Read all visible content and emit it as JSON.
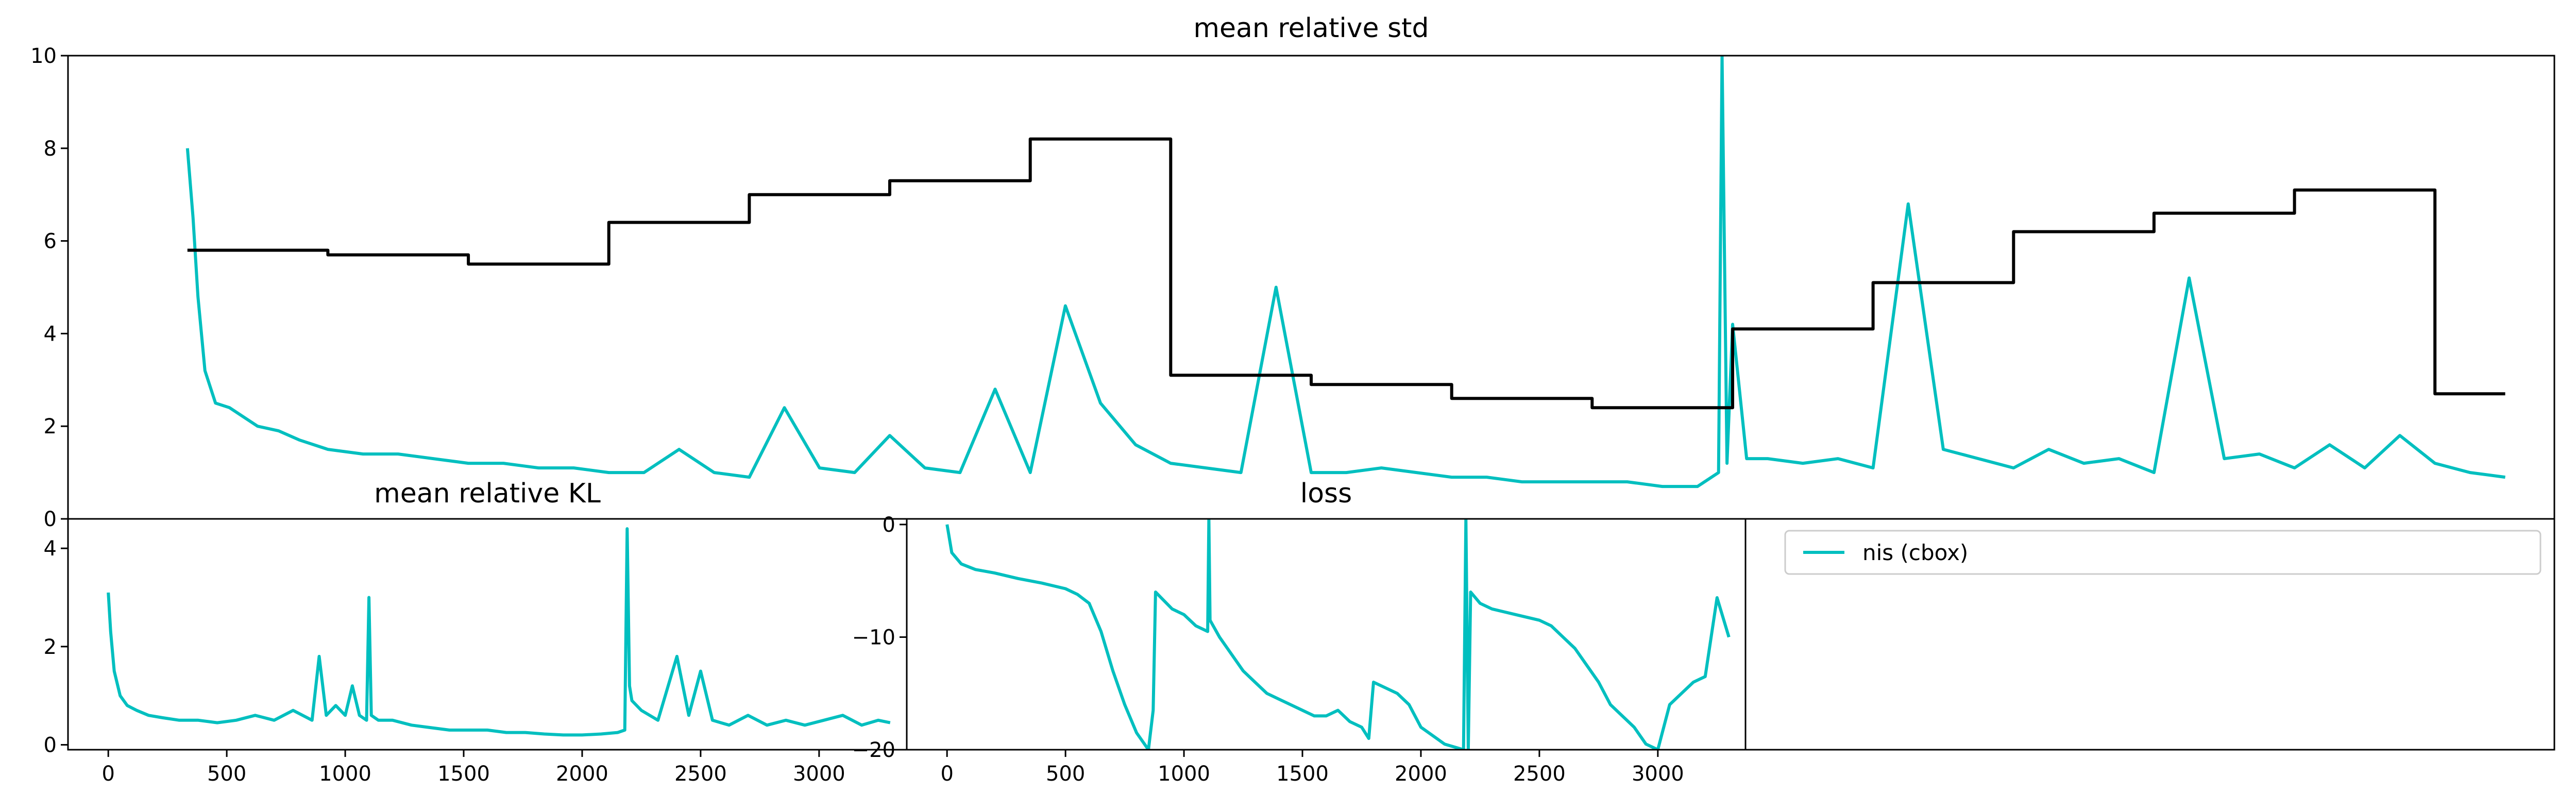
{
  "colors": {
    "cyan": "#00bfbf",
    "black": "#000000",
    "background": "#ffffff",
    "legend_border": "#cccccc"
  },
  "legend": {
    "entries": [
      {
        "label": "nis (cbox)",
        "color": "#00bfbf"
      }
    ]
  },
  "chart_data": [
    {
      "id": "std",
      "type": "line",
      "title": "mean relative std",
      "xlabel": "",
      "ylabel": "",
      "xlim": [
        -170,
        3370
      ],
      "ylim": [
        0,
        10
      ],
      "yticks": [
        0,
        2,
        4,
        6,
        8,
        10
      ],
      "xticks": [],
      "grid": false,
      "series": [
        {
          "name": "nis (cbox)",
          "color": "#00bfbf",
          "x": [
            0,
            8,
            15,
            25,
            40,
            60,
            80,
            100,
            130,
            160,
            200,
            250,
            300,
            350,
            400,
            450,
            500,
            550,
            600,
            650,
            700,
            750,
            800,
            850,
            900,
            950,
            1000,
            1050,
            1100,
            1150,
            1200,
            1250,
            1300,
            1350,
            1400,
            1450,
            1500,
            1550,
            1600,
            1650,
            1700,
            1750,
            1800,
            1850,
            1900,
            1950,
            2000,
            2050,
            2100,
            2150,
            2180,
            2185,
            2192,
            2200,
            2220,
            2250,
            2300,
            2350,
            2400,
            2450,
            2500,
            2550,
            2600,
            2650,
            2700,
            2750,
            2800,
            2850,
            2900,
            2950,
            3000,
            3050,
            3100,
            3150,
            3200,
            3250,
            3300
          ],
          "y": [
            8.0,
            6.5,
            4.8,
            3.2,
            2.5,
            2.4,
            2.2,
            2.0,
            1.9,
            1.7,
            1.5,
            1.4,
            1.4,
            1.3,
            1.2,
            1.2,
            1.1,
            1.1,
            1.0,
            1.0,
            1.5,
            1.0,
            0.9,
            2.4,
            1.1,
            1.0,
            1.8,
            1.1,
            1.0,
            2.8,
            1.0,
            4.6,
            2.5,
            1.6,
            1.2,
            1.1,
            1.0,
            5.0,
            1.0,
            1.0,
            1.1,
            1.0,
            0.9,
            0.9,
            0.8,
            0.8,
            0.8,
            0.8,
            0.7,
            0.7,
            1.0,
            10.0,
            1.2,
            4.2,
            1.3,
            1.3,
            1.2,
            1.3,
            1.1,
            6.8,
            1.5,
            1.3,
            1.1,
            1.5,
            1.2,
            1.3,
            1.0,
            5.2,
            1.3,
            1.4,
            1.1,
            1.6,
            1.1,
            1.8,
            1.2,
            1.0,
            0.9
          ]
        },
        {
          "name": "",
          "color": "#000000",
          "x": [
            0,
            200,
            200,
            400,
            400,
            600,
            600,
            800,
            800,
            1000,
            1000,
            1200,
            1200,
            1400,
            1400,
            1600,
            1600,
            1800,
            1800,
            2000,
            2000,
            2200,
            2200,
            2400,
            2400,
            2600,
            2600,
            2800,
            2800,
            3000,
            3000,
            3200,
            3200,
            3300
          ],
          "y": [
            5.8,
            5.8,
            5.7,
            5.7,
            5.5,
            5.5,
            6.4,
            6.4,
            7.0,
            7.0,
            7.3,
            7.3,
            8.2,
            8.2,
            3.1,
            3.1,
            2.9,
            2.9,
            2.6,
            2.6,
            2.4,
            2.4,
            4.1,
            4.1,
            5.1,
            5.1,
            6.2,
            6.2,
            6.6,
            6.6,
            7.1,
            7.1,
            2.7,
            2.7
          ]
        }
      ]
    },
    {
      "id": "kl",
      "type": "line",
      "title": "mean relative KL",
      "xlabel": "",
      "ylabel": "",
      "xlim": [
        -170,
        3370
      ],
      "ylim": [
        -0.1,
        4.6
      ],
      "yticks": [
        0,
        2,
        4
      ],
      "xticks": [
        0,
        500,
        1000,
        1500,
        2000,
        2500,
        3000
      ],
      "grid": false,
      "series": [
        {
          "name": "nis (cbox)",
          "color": "#00bfbf",
          "x": [
            0,
            10,
            25,
            50,
            80,
            120,
            170,
            230,
            300,
            380,
            460,
            540,
            620,
            700,
            780,
            860,
            890,
            920,
            960,
            1000,
            1030,
            1060,
            1090,
            1100,
            1110,
            1140,
            1200,
            1280,
            1360,
            1440,
            1520,
            1600,
            1680,
            1760,
            1840,
            1920,
            2000,
            2080,
            2150,
            2180,
            2190,
            2200,
            2210,
            2250,
            2320,
            2400,
            2450,
            2500,
            2550,
            2620,
            2700,
            2780,
            2860,
            2940,
            3020,
            3100,
            3180,
            3250,
            3300
          ],
          "y": [
            3.1,
            2.3,
            1.5,
            1.0,
            0.8,
            0.7,
            0.6,
            0.55,
            0.5,
            0.5,
            0.45,
            0.5,
            0.6,
            0.5,
            0.7,
            0.5,
            1.8,
            0.6,
            0.8,
            0.6,
            1.2,
            0.6,
            0.5,
            3.0,
            0.6,
            0.5,
            0.5,
            0.4,
            0.35,
            0.3,
            0.3,
            0.3,
            0.25,
            0.25,
            0.22,
            0.2,
            0.2,
            0.22,
            0.25,
            0.3,
            4.4,
            1.2,
            0.9,
            0.7,
            0.5,
            1.8,
            0.6,
            1.5,
            0.5,
            0.4,
            0.6,
            0.4,
            0.5,
            0.4,
            0.5,
            0.6,
            0.4,
            0.5,
            0.45
          ]
        }
      ]
    },
    {
      "id": "loss",
      "type": "line",
      "title": "loss",
      "xlabel": "",
      "ylabel": "",
      "xlim": [
        -170,
        3370
      ],
      "ylim": [
        -20,
        0.5
      ],
      "yticks": [
        0,
        -10,
        -20
      ],
      "ytick_labels": [
        "0",
        "−10",
        "−20"
      ],
      "xticks": [
        0,
        500,
        1000,
        1500,
        2000,
        2500,
        3000
      ],
      "grid": false,
      "series": [
        {
          "name": "nis (cbox)",
          "color": "#00bfbf",
          "x": [
            0,
            20,
            60,
            120,
            200,
            300,
            400,
            500,
            550,
            600,
            650,
            700,
            750,
            800,
            850,
            870,
            880,
            950,
            1000,
            1050,
            1100,
            1105,
            1110,
            1150,
            1200,
            1250,
            1300,
            1350,
            1400,
            1450,
            1500,
            1550,
            1600,
            1650,
            1700,
            1750,
            1780,
            1800,
            1850,
            1900,
            1950,
            2000,
            2100,
            2180,
            2190,
            2200,
            2210,
            2250,
            2300,
            2400,
            2500,
            2550,
            2600,
            2650,
            2700,
            2750,
            2800,
            2850,
            2900,
            2950,
            3000,
            3050,
            3100,
            3150,
            3200,
            3250,
            3300
          ],
          "y": [
            0.0,
            -2.5,
            -3.5,
            -4.0,
            -4.3,
            -4.8,
            -5.2,
            -5.7,
            -6.2,
            -7.0,
            -9.5,
            -13.0,
            -16.0,
            -18.5,
            -20.0,
            -16.5,
            -6.0,
            -7.5,
            -8.0,
            -9.0,
            -9.5,
            0.5,
            -8.5,
            -10.0,
            -11.5,
            -13.0,
            -14.0,
            -15.0,
            -15.5,
            -16.0,
            -16.5,
            -17.0,
            -17.0,
            -16.5,
            -17.5,
            -18.0,
            -19.0,
            -14.0,
            -14.5,
            -15.0,
            -16.0,
            -18.0,
            -19.5,
            -20.0,
            0.5,
            -20.0,
            -6.0,
            -7.0,
            -7.5,
            -8.0,
            -8.5,
            -9.0,
            -10.0,
            -11.0,
            -12.5,
            -14.0,
            -16.0,
            -17.0,
            -18.0,
            -19.5,
            -20.0,
            -16.0,
            -15.0,
            -14.0,
            -13.5,
            -6.5,
            -10.0
          ]
        }
      ]
    }
  ]
}
